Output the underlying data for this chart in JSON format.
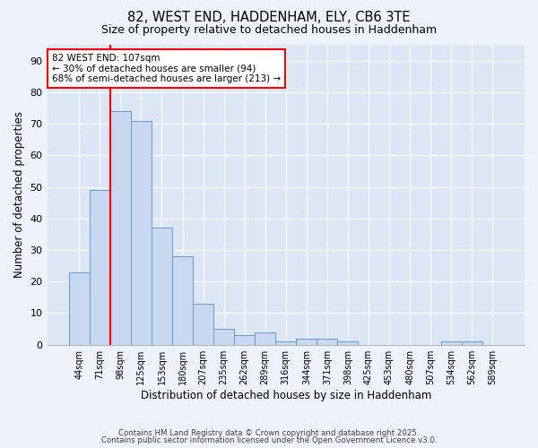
{
  "title1": "82, WEST END, HADDENHAM, ELY, CB6 3TE",
  "title2": "Size of property relative to detached houses in Haddenham",
  "xlabel": "Distribution of detached houses by size in Haddenham",
  "ylabel": "Number of detached properties",
  "categories": [
    "44sqm",
    "71sqm",
    "98sqm",
    "125sqm",
    "153sqm",
    "180sqm",
    "207sqm",
    "235sqm",
    "262sqm",
    "289sqm",
    "316sqm",
    "344sqm",
    "371sqm",
    "398sqm",
    "425sqm",
    "453sqm",
    "480sqm",
    "507sqm",
    "534sqm",
    "562sqm",
    "589sqm"
  ],
  "values": [
    23,
    49,
    74,
    71,
    37,
    28,
    13,
    5,
    3,
    4,
    1,
    2,
    2,
    1,
    0,
    0,
    0,
    0,
    1,
    1,
    0
  ],
  "bar_color": "#c8d8f0",
  "bar_edge_color": "#6699cc",
  "red_line_index": 2,
  "annotation_text": "82 WEST END: 107sqm\n← 30% of detached houses are smaller (94)\n68% of semi-detached houses are larger (213) →",
  "annotation_box_color": "white",
  "annotation_box_edge_color": "red",
  "ylim": [
    0,
    95
  ],
  "yticks": [
    0,
    10,
    20,
    30,
    40,
    50,
    60,
    70,
    80,
    90
  ],
  "footer1": "Contains HM Land Registry data © Crown copyright and database right 2025.",
  "footer2": "Contains public sector information licensed under the Open Government Licence v3.0.",
  "bg_color": "#edf2fb",
  "plot_bg_color": "#dce6f5",
  "grid_color": "#ffffff"
}
